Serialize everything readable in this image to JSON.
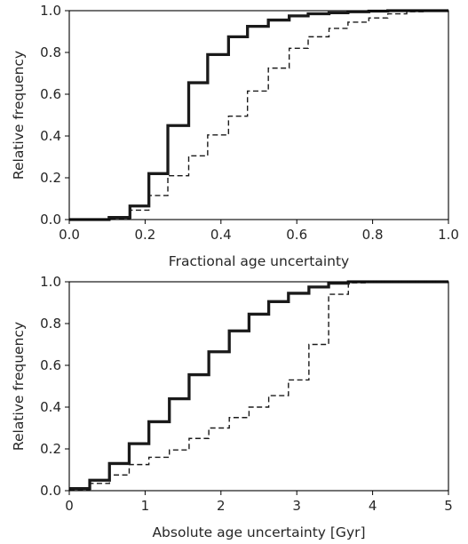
{
  "chart_data": [
    {
      "type": "line",
      "step": true,
      "xlabel": "Fractional age uncertainty",
      "ylabel": "Relative frequency",
      "xlim": [
        0.0,
        1.0
      ],
      "ylim": [
        0.0,
        1.0
      ],
      "x_ticks": [
        "0.0",
        "0.2",
        "0.4",
        "0.6",
        "0.8",
        "1.0"
      ],
      "y_ticks": [
        "0.0",
        "0.2",
        "0.4",
        "0.6",
        "0.8",
        "1.0"
      ],
      "grid": false,
      "series": [
        {
          "style": "solid-thick",
          "x": [
            0.0,
            0.105,
            0.105,
            0.16,
            0.16,
            0.21,
            0.21,
            0.26,
            0.26,
            0.315,
            0.315,
            0.365,
            0.365,
            0.42,
            0.42,
            0.47,
            0.47,
            0.525,
            0.525,
            0.58,
            0.58,
            0.63,
            0.63,
            0.685,
            0.685,
            0.735,
            0.735,
            0.79,
            0.79,
            0.84,
            0.84,
            0.89,
            0.89,
            1.0
          ],
          "y": [
            0.0,
            0.0,
            0.01,
            0.01,
            0.065,
            0.065,
            0.22,
            0.22,
            0.45,
            0.45,
            0.655,
            0.655,
            0.79,
            0.79,
            0.875,
            0.875,
            0.925,
            0.925,
            0.955,
            0.955,
            0.975,
            0.975,
            0.985,
            0.985,
            0.99,
            0.99,
            0.995,
            0.995,
            0.998,
            0.998,
            1.0,
            1.0,
            1.0,
            1.0
          ]
        },
        {
          "style": "dashed-thin",
          "x": [
            0.0,
            0.105,
            0.105,
            0.16,
            0.16,
            0.21,
            0.21,
            0.26,
            0.26,
            0.315,
            0.315,
            0.365,
            0.365,
            0.42,
            0.42,
            0.47,
            0.47,
            0.525,
            0.525,
            0.58,
            0.58,
            0.63,
            0.63,
            0.685,
            0.685,
            0.735,
            0.735,
            0.79,
            0.79,
            0.84,
            0.84,
            0.89,
            0.89,
            0.94,
            0.94,
            1.0
          ],
          "y": [
            0.0,
            0.0,
            0.005,
            0.005,
            0.045,
            0.045,
            0.115,
            0.115,
            0.21,
            0.21,
            0.305,
            0.305,
            0.405,
            0.405,
            0.495,
            0.495,
            0.615,
            0.615,
            0.725,
            0.725,
            0.82,
            0.82,
            0.875,
            0.875,
            0.915,
            0.915,
            0.945,
            0.945,
            0.965,
            0.965,
            0.985,
            0.985,
            0.995,
            0.995,
            1.0,
            1.0
          ]
        }
      ]
    },
    {
      "type": "line",
      "step": true,
      "xlabel": "Absolute age uncertainty [Gyr]",
      "ylabel": "Relative frequency",
      "xlim": [
        0,
        5
      ],
      "ylim": [
        0.0,
        1.0
      ],
      "x_ticks": [
        "0",
        "1",
        "2",
        "3",
        "4",
        "5"
      ],
      "y_ticks": [
        "0.0",
        "0.2",
        "0.4",
        "0.6",
        "0.8",
        "1.0"
      ],
      "grid": false,
      "series": [
        {
          "style": "solid-thick",
          "x": [
            0.0,
            0.27,
            0.27,
            0.53,
            0.53,
            0.79,
            0.79,
            1.05,
            1.05,
            1.32,
            1.32,
            1.58,
            1.58,
            1.84,
            1.84,
            2.11,
            2.11,
            2.37,
            2.37,
            2.63,
            2.63,
            2.89,
            2.89,
            3.16,
            3.16,
            3.42,
            3.42,
            3.68,
            3.68,
            3.95,
            3.95,
            5.0
          ],
          "y": [
            0.01,
            0.01,
            0.05,
            0.05,
            0.13,
            0.13,
            0.225,
            0.225,
            0.33,
            0.33,
            0.44,
            0.44,
            0.555,
            0.555,
            0.665,
            0.665,
            0.765,
            0.765,
            0.845,
            0.845,
            0.905,
            0.905,
            0.945,
            0.945,
            0.975,
            0.975,
            0.993,
            0.993,
            1.0,
            1.0,
            1.0,
            1.0
          ]
        },
        {
          "style": "dashed-thin",
          "x": [
            0.0,
            0.27,
            0.27,
            0.53,
            0.53,
            0.79,
            0.79,
            1.05,
            1.05,
            1.32,
            1.32,
            1.58,
            1.58,
            1.84,
            1.84,
            2.11,
            2.11,
            2.37,
            2.37,
            2.63,
            2.63,
            2.89,
            2.89,
            3.16,
            3.16,
            3.42,
            3.42,
            3.68,
            3.68,
            3.95,
            3.95,
            5.0
          ],
          "y": [
            0.005,
            0.005,
            0.035,
            0.035,
            0.075,
            0.075,
            0.125,
            0.125,
            0.16,
            0.16,
            0.195,
            0.195,
            0.25,
            0.25,
            0.3,
            0.3,
            0.35,
            0.35,
            0.4,
            0.4,
            0.455,
            0.455,
            0.53,
            0.53,
            0.7,
            0.7,
            0.94,
            0.94,
            0.995,
            0.995,
            1.0,
            1.0
          ]
        }
      ]
    }
  ]
}
